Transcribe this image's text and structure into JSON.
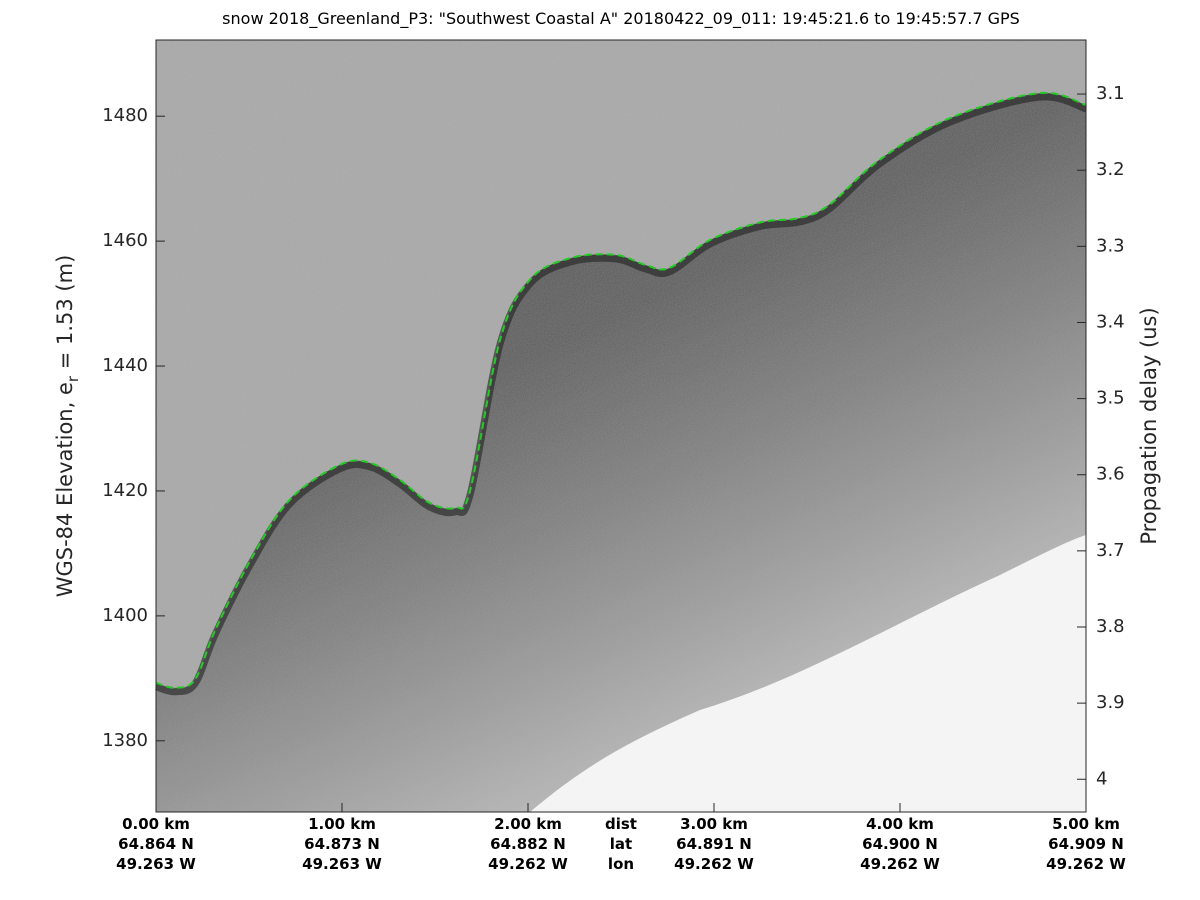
{
  "chart_data": {
    "type": "echogram",
    "title": "snow 2018_Greenland_P3: \"Southwest Coastal A\"  20180422_09_011: 19:45:21.6 to 19:45:57.7 GPS",
    "ylabel": "WGS-84 Elevation, e",
    "ylabel_sub": "r",
    "ylabel_rest": " = 1.53 (m)",
    "y2label": "Propagation delay (us)",
    "x": [
      0,
      0.1,
      0.21,
      0.32,
      0.51,
      0.72,
      0.99,
      1.15,
      1.31,
      1.47,
      1.61,
      1.69,
      1.85,
      2.01,
      2.23,
      2.47,
      2.63,
      2.76,
      2.98,
      3.25,
      3.46,
      3.62,
      3.89,
      4.27,
      4.75,
      5.0
    ],
    "series": [
      {
        "name": "surface",
        "color": "#22cc22",
        "values": [
          1389.3,
          1388.5,
          1389.8,
          1397.8,
          1409.0,
          1418.6,
          1424.2,
          1424.5,
          1421.8,
          1418.1,
          1417.3,
          1420.2,
          1444.2,
          1453.8,
          1457.3,
          1457.8,
          1456.2,
          1455.7,
          1460.2,
          1463.0,
          1463.7,
          1465.8,
          1473.0,
          1479.7,
          1483.7,
          1481.8
        ]
      }
    ],
    "xlim": [
      0,
      5
    ],
    "xticks": [
      {
        "value": 0,
        "label": "0.00 km"
      },
      {
        "value": 1,
        "label": "1.00 km"
      },
      {
        "value": 2,
        "label": "2.00 km"
      },
      {
        "value": 3,
        "label": "3.00 km"
      },
      {
        "value": 4,
        "label": "4.00 km"
      },
      {
        "value": 5,
        "label": "5.00 km"
      }
    ],
    "lat_labels": [
      "64.864 N",
      "64.873 N",
      "64.882 N",
      "64.891 N",
      "64.900 N",
      "64.909 N"
    ],
    "lon_labels": [
      "49.263 W",
      "49.263 W",
      "49.262 W",
      "49.262 W",
      "49.262 W",
      "49.262 W"
    ],
    "row_labels": [
      "dist",
      "lat",
      "lon"
    ],
    "ylim": [
      1368.6,
      1492.2
    ],
    "yticks": [
      1380,
      1400,
      1420,
      1440,
      1460,
      1480
    ],
    "y2lim": [
      4.043,
      3.029
    ],
    "y2ticks": [
      3.1,
      3.2,
      3.3,
      3.4,
      3.5,
      3.6,
      3.7,
      3.8,
      3.9,
      4
    ]
  }
}
